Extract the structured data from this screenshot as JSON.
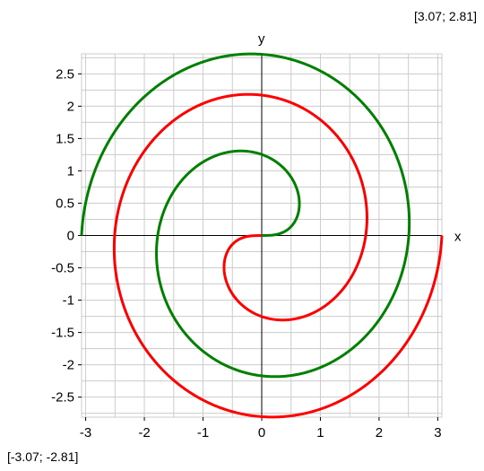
{
  "chart_data": {
    "type": "line",
    "title": "",
    "xlabel": "x",
    "ylabel": "y",
    "xlim": [
      -3.07,
      3.07
    ],
    "ylim": [
      -2.81,
      2.81
    ],
    "x_ticks": [
      -3,
      -2,
      -1,
      0,
      1,
      2,
      3
    ],
    "y_ticks": [
      -2.5,
      -2,
      -1.5,
      -1,
      -0.5,
      0,
      0.5,
      1,
      1.5,
      2,
      2.5
    ],
    "grid": true,
    "curve": "Fermat spiral r = sqrt(theta), theta from 0 to 3*pi",
    "series": [
      {
        "color": "#ff0000",
        "points": [
          [
            0,
            0
          ],
          [
            0.6,
            0.5
          ],
          [
            -0.3,
            1.31
          ],
          [
            -1.73,
            -0.28
          ],
          [
            0.21,
            -2.17
          ],
          [
            2.52,
            0.03
          ],
          [
            -0.16,
            2.81
          ],
          [
            -3.07,
            0.0
          ]
        ]
      },
      {
        "color": "#008000",
        "points": [
          [
            0,
            0
          ],
          [
            -0.6,
            -0.5
          ],
          [
            0.3,
            -1.31
          ],
          [
            1.73,
            0.28
          ],
          [
            -0.21,
            2.17
          ],
          [
            -2.52,
            -0.03
          ],
          [
            0.16,
            -2.81
          ],
          [
            3.07,
            0.0
          ]
        ]
      }
    ]
  },
  "corner_max_label": "[3.07; 2.81]",
  "corner_min_label": "[-3.07; -2.81]",
  "colors": {
    "grid": "#cccccc",
    "axis": "#000000",
    "series_1": "#ff0000",
    "series_2": "#008000"
  }
}
